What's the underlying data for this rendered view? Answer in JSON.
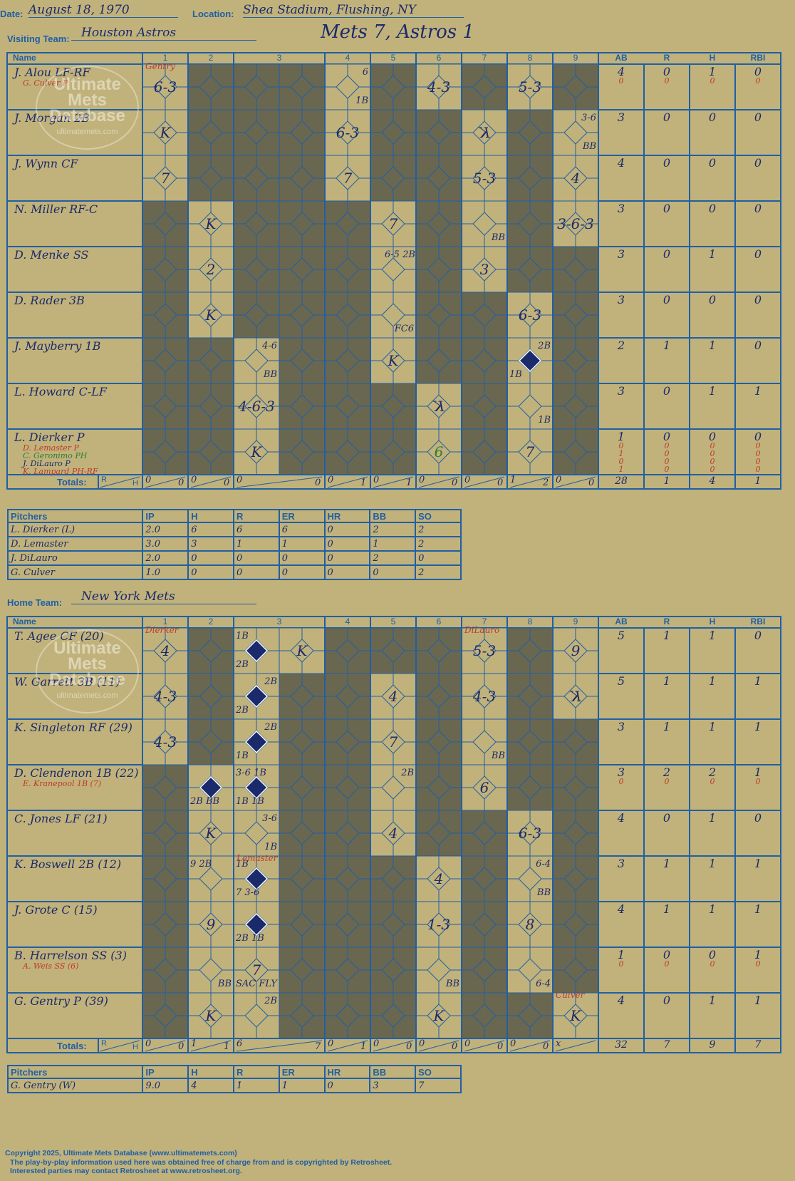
{
  "header": {
    "date_label": "Date:",
    "date": "August 18, 1970",
    "location_label": "Location:",
    "location": "Shea Stadium, Flushing, NY",
    "visiting_label": "Visiting Team:",
    "visiting_team": "Houston Astros",
    "home_label": "Home Team:",
    "home_team": "New York Mets",
    "score_title": "Mets 7, Astros 1"
  },
  "columns": {
    "name": "Name",
    "innings": [
      "1",
      "2",
      "3",
      "4",
      "5",
      "6",
      "7",
      "8",
      "9"
    ],
    "stats": [
      "AB",
      "R",
      "H",
      "RBI"
    ]
  },
  "watermark": {
    "line1": "Ultimate",
    "line2": "Mets",
    "line3": "Database",
    "url": "ultimatemets.com"
  },
  "visitors": {
    "players": [
      {
        "name": "J. Alou LF-RF",
        "subs": [
          {
            "name": "G. Culver P",
            "color": "#c0392b"
          }
        ],
        "stats": [
          "4",
          "0",
          "1",
          "0"
        ],
        "sub_stats": [
          [
            "0",
            "0",
            "0",
            "0"
          ]
        ]
      },
      {
        "name": "J. Morgan 2B",
        "subs": [],
        "stats": [
          "3",
          "0",
          "0",
          "0"
        ],
        "sub_stats": []
      },
      {
        "name": "J. Wynn CF",
        "subs": [],
        "stats": [
          "4",
          "0",
          "0",
          "0"
        ],
        "sub_stats": []
      },
      {
        "name": "N. Miller RF-C",
        "subs": [],
        "stats": [
          "3",
          "0",
          "0",
          "0"
        ],
        "sub_stats": []
      },
      {
        "name": "D. Menke SS",
        "subs": [],
        "stats": [
          "3",
          "0",
          "1",
          "0"
        ],
        "sub_stats": []
      },
      {
        "name": "D. Rader 3B",
        "subs": [],
        "stats": [
          "3",
          "0",
          "0",
          "0"
        ],
        "sub_stats": []
      },
      {
        "name": "J. Mayberry 1B",
        "subs": [],
        "stats": [
          "2",
          "1",
          "1",
          "0"
        ],
        "sub_stats": []
      },
      {
        "name": "L. Howard C-LF",
        "subs": [],
        "stats": [
          "3",
          "0",
          "1",
          "1"
        ],
        "sub_stats": []
      },
      {
        "name": "L. Dierker P",
        "subs": [
          {
            "name": "D. Lemaster P",
            "color": "#c0392b"
          },
          {
            "name": "C. Geronimo PH",
            "color": "#2e7d32"
          },
          {
            "name": "J. DiLauro P",
            "color": "#1b2a6b"
          },
          {
            "name": "K. Lampard PH-RF",
            "color": "#c0392b"
          }
        ],
        "stats": [
          "1",
          "0",
          "0",
          "0"
        ],
        "sub_stats": [
          [
            "0",
            "0",
            "0",
            "0"
          ],
          [
            "1",
            "0",
            "0",
            "0"
          ],
          [
            "0",
            "0",
            "0",
            "0"
          ],
          [
            "1",
            "0",
            "0",
            "0"
          ]
        ]
      }
    ],
    "totals_label": "Totals:",
    "rh_r": "R",
    "rh_h": "H",
    "inning_totals": [
      [
        "0",
        "0"
      ],
      [
        "0",
        "0"
      ],
      [
        "0",
        "0"
      ],
      [
        "0",
        "1"
      ],
      [
        "0",
        "1"
      ],
      [
        "0",
        "0"
      ],
      [
        "0",
        "0"
      ],
      [
        "1",
        "2"
      ],
      [
        "0",
        "0"
      ]
    ],
    "totals": [
      "28",
      "1",
      "4",
      "1"
    ]
  },
  "visitor_pitching": {
    "label": "Pitchers",
    "headers": [
      "IP",
      "H",
      "R",
      "ER",
      "HR",
      "BB",
      "SO"
    ],
    "rows": [
      [
        "L. Dierker (L)",
        "2.0",
        "6",
        "6",
        "6",
        "0",
        "2",
        "2"
      ],
      [
        "D. Lemaster",
        "3.0",
        "3",
        "1",
        "1",
        "0",
        "1",
        "2"
      ],
      [
        "J. DiLauro",
        "2.0",
        "0",
        "0",
        "0",
        "0",
        "2",
        "0"
      ],
      [
        "G. Culver",
        "1.0",
        "0",
        "0",
        "0",
        "0",
        "0",
        "2"
      ]
    ]
  },
  "home": {
    "players": [
      {
        "name": "T. Agee CF (20)",
        "subs": [],
        "stats": [
          "5",
          "1",
          "1",
          "0"
        ],
        "sub_stats": []
      },
      {
        "name": "W. Garrett 3B (11)",
        "subs": [],
        "stats": [
          "5",
          "1",
          "1",
          "1"
        ],
        "sub_stats": []
      },
      {
        "name": "K. Singleton RF (29)",
        "subs": [],
        "stats": [
          "3",
          "1",
          "1",
          "1"
        ],
        "sub_stats": []
      },
      {
        "name": "D. Clendenon 1B (22)",
        "subs": [
          {
            "name": "E. Kranepool 1B (7)",
            "color": "#c0392b"
          }
        ],
        "stats": [
          "3",
          "2",
          "2",
          "1"
        ],
        "sub_stats": [
          [
            "0",
            "0",
            "0",
            "0"
          ]
        ]
      },
      {
        "name": "C. Jones LF (21)",
        "subs": [],
        "stats": [
          "4",
          "0",
          "1",
          "0"
        ],
        "sub_stats": []
      },
      {
        "name": "K. Boswell 2B (12)",
        "subs": [],
        "stats": [
          "3",
          "1",
          "1",
          "1"
        ],
        "sub_stats": []
      },
      {
        "name": "J. Grote C (15)",
        "subs": [],
        "stats": [
          "4",
          "1",
          "1",
          "1"
        ],
        "sub_stats": []
      },
      {
        "name": "B. Harrelson SS (3)",
        "subs": [
          {
            "name": "A. Weis SS (6)",
            "color": "#c0392b"
          }
        ],
        "stats": [
          "1",
          "0",
          "0",
          "1"
        ],
        "sub_stats": [
          [
            "0",
            "0",
            "0",
            "0"
          ]
        ]
      },
      {
        "name": "G. Gentry P (39)",
        "subs": [],
        "stats": [
          "4",
          "0",
          "1",
          "1"
        ],
        "sub_stats": []
      }
    ],
    "totals_label": "Totals:",
    "rh_r": "R",
    "rh_h": "H",
    "inning_totals": [
      [
        "0",
        "0"
      ],
      [
        "1",
        "1"
      ],
      [
        "6",
        "7"
      ],
      [
        "0",
        "1"
      ],
      [
        "0",
        "0"
      ],
      [
        "0",
        "0"
      ],
      [
        "0",
        "0"
      ],
      [
        "0",
        "0"
      ],
      [
        "x",
        ""
      ]
    ],
    "totals": [
      "32",
      "7",
      "9",
      "7"
    ]
  },
  "home_pitching": {
    "label": "Pitchers",
    "headers": [
      "IP",
      "H",
      "R",
      "ER",
      "HR",
      "BB",
      "SO"
    ],
    "rows": [
      [
        "G. Gentry (W)",
        "9.0",
        "4",
        "1",
        "1",
        "0",
        "3",
        "7"
      ]
    ]
  },
  "plays": {
    "visitors": [
      {
        "r": 0,
        "c": 0,
        "t": "6-3"
      },
      {
        "r": 0,
        "c": 4,
        "t": "6",
        "small": true,
        "pos": "tr"
      },
      {
        "r": 0,
        "c": 4,
        "t": "1B",
        "small": true,
        "pos": "br"
      },
      {
        "r": 0,
        "c": 6,
        "t": "4-3"
      },
      {
        "r": 0,
        "c": 8,
        "t": "5-3"
      },
      {
        "r": 1,
        "c": 0,
        "t": "K"
      },
      {
        "r": 1,
        "c": 4,
        "t": "6-3"
      },
      {
        "r": 1,
        "c": 7,
        "t": "K",
        "rev": true
      },
      {
        "r": 1,
        "c": 9,
        "t": "3-6",
        "small": true,
        "pos": "tr"
      },
      {
        "r": 1,
        "c": 9,
        "t": "BB",
        "small": true,
        "pos": "br"
      },
      {
        "r": 2,
        "c": 0,
        "t": "7"
      },
      {
        "r": 2,
        "c": 4,
        "t": "7"
      },
      {
        "r": 2,
        "c": 7,
        "t": "5-3"
      },
      {
        "r": 2,
        "c": 9,
        "t": "4"
      },
      {
        "r": 3,
        "c": 1,
        "t": "K"
      },
      {
        "r": 3,
        "c": 5,
        "t": "7"
      },
      {
        "r": 3,
        "c": 7,
        "t": "BB",
        "small": true,
        "pos": "br"
      },
      {
        "r": 3,
        "c": 9,
        "t": "3-6-3"
      },
      {
        "r": 4,
        "c": 1,
        "t": "2"
      },
      {
        "r": 4,
        "c": 5,
        "t": "6-5 2B",
        "small": true,
        "pos": "tr"
      },
      {
        "r": 4,
        "c": 7,
        "t": "3"
      },
      {
        "r": 5,
        "c": 1,
        "t": "K"
      },
      {
        "r": 5,
        "c": 5,
        "t": "FC6",
        "small": true,
        "pos": "br"
      },
      {
        "r": 5,
        "c": 8,
        "t": "6-3"
      },
      {
        "r": 6,
        "c": 2,
        "t": "4-6",
        "small": true,
        "pos": "tr"
      },
      {
        "r": 6,
        "c": 2,
        "t": "BB",
        "small": true,
        "pos": "br"
      },
      {
        "r": 6,
        "c": 5,
        "t": "K"
      },
      {
        "r": 6,
        "c": 8,
        "t": "2B",
        "small": true,
        "pos": "tr"
      },
      {
        "r": 6,
        "c": 8,
        "t": "1B",
        "small": true,
        "pos": "bl"
      },
      {
        "r": 7,
        "c": 2,
        "t": "4-6-3"
      },
      {
        "r": 7,
        "c": 6,
        "t": "K",
        "rev": true
      },
      {
        "r": 7,
        "c": 8,
        "t": "1B",
        "small": true,
        "pos": "br"
      },
      {
        "r": 8,
        "c": 2,
        "t": "K"
      },
      {
        "r": 8,
        "c": 6,
        "t": "6",
        "color": "#2e7d32"
      },
      {
        "r": 8,
        "c": 8,
        "t": "7"
      }
    ],
    "home": [
      {
        "r": 0,
        "c": 0,
        "t": "4"
      },
      {
        "r": 0,
        "c": 2,
        "t": "1B",
        "small": true,
        "pos": "tl"
      },
      {
        "r": 0,
        "c": 2,
        "t": "2B",
        "small": true,
        "pos": "bl"
      },
      {
        "r": 0,
        "c": 3,
        "t": "K"
      },
      {
        "r": 0,
        "c": 7,
        "t": "5-3"
      },
      {
        "r": 0,
        "c": 9,
        "t": "9"
      },
      {
        "r": 1,
        "c": 0,
        "t": "4-3"
      },
      {
        "r": 1,
        "c": 2,
        "t": "2B",
        "small": true,
        "pos": "tr"
      },
      {
        "r": 1,
        "c": 2,
        "t": "2B",
        "small": true,
        "pos": "bl"
      },
      {
        "r": 1,
        "c": 5,
        "t": "4"
      },
      {
        "r": 1,
        "c": 7,
        "t": "4-3"
      },
      {
        "r": 1,
        "c": 9,
        "t": "K",
        "rev": true
      },
      {
        "r": 2,
        "c": 0,
        "t": "4-3"
      },
      {
        "r": 2,
        "c": 2,
        "t": "2B",
        "small": true,
        "pos": "tr"
      },
      {
        "r": 2,
        "c": 2,
        "t": "1B",
        "small": true,
        "pos": "bl"
      },
      {
        "r": 2,
        "c": 5,
        "t": "7"
      },
      {
        "r": 2,
        "c": 7,
        "t": "BB",
        "small": true,
        "pos": "br"
      },
      {
        "r": 3,
        "c": 1,
        "t": "2B BB",
        "small": true,
        "pos": "bl"
      },
      {
        "r": 3,
        "c": 2,
        "t": "3-6 1B",
        "small": true,
        "pos": "tl"
      },
      {
        "r": 3,
        "c": 2,
        "t": "1B 1B",
        "small": true,
        "pos": "bl"
      },
      {
        "r": 3,
        "c": 5,
        "t": "2B",
        "small": true,
        "pos": "tr"
      },
      {
        "r": 3,
        "c": 7,
        "t": "6"
      },
      {
        "r": 4,
        "c": 1,
        "t": "K"
      },
      {
        "r": 4,
        "c": 2,
        "t": "3-6",
        "small": true,
        "pos": "tr"
      },
      {
        "r": 4,
        "c": 2,
        "t": "1B",
        "small": true,
        "pos": "br"
      },
      {
        "r": 4,
        "c": 5,
        "t": "4"
      },
      {
        "r": 4,
        "c": 8,
        "t": "6-3"
      },
      {
        "r": 5,
        "c": 1,
        "t": "9      2B",
        "small": true,
        "pos": "tl"
      },
      {
        "r": 5,
        "c": 2,
        "t": "1B",
        "small": true,
        "pos": "tl"
      },
      {
        "r": 5,
        "c": 2,
        "t": "7     3-6",
        "small": true,
        "pos": "bl"
      },
      {
        "r": 5,
        "c": 6,
        "t": "4"
      },
      {
        "r": 5,
        "c": 8,
        "t": "6-4",
        "small": true,
        "pos": "tr"
      },
      {
        "r": 5,
        "c": 8,
        "t": "BB",
        "small": true,
        "pos": "br"
      },
      {
        "r": 6,
        "c": 1,
        "t": "9"
      },
      {
        "r": 6,
        "c": 2,
        "t": "2B 1B",
        "small": true,
        "pos": "bl"
      },
      {
        "r": 6,
        "c": 6,
        "t": "1-3"
      },
      {
        "r": 6,
        "c": 8,
        "t": "8"
      },
      {
        "r": 7,
        "c": 1,
        "t": "BB",
        "small": true,
        "pos": "br"
      },
      {
        "r": 7,
        "c": 2,
        "t": "7"
      },
      {
        "r": 7,
        "c": 2,
        "t": "SAC FLY",
        "small": true,
        "pos": "bl"
      },
      {
        "r": 7,
        "c": 6,
        "t": "BB",
        "small": true,
        "pos": "br"
      },
      {
        "r": 7,
        "c": 8,
        "t": "6-4",
        "small": true,
        "pos": "br"
      },
      {
        "r": 8,
        "c": 1,
        "t": "K"
      },
      {
        "r": 8,
        "c": 2,
        "t": "2B",
        "small": true,
        "pos": "tr"
      },
      {
        "r": 8,
        "c": 6,
        "t": "K"
      },
      {
        "r": 8,
        "c": 9,
        "t": "K"
      }
    ]
  },
  "runs_scored": {
    "visitors": [
      {
        "r": 6,
        "c": 8
      }
    ],
    "home": [
      {
        "r": 0,
        "c": 2
      },
      {
        "r": 1,
        "c": 2
      },
      {
        "r": 2,
        "c": 2
      },
      {
        "r": 3,
        "c": 1
      },
      {
        "r": 3,
        "c": 2
      },
      {
        "r": 5,
        "c": 2
      },
      {
        "r": 6,
        "c": 2
      }
    ]
  },
  "pitcher_changes": {
    "visitors": [
      {
        "r": 0,
        "c": 0,
        "t": "Gentry"
      }
    ],
    "home": [
      {
        "r": 0,
        "c": 0,
        "t": "Dierker"
      },
      {
        "r": 0,
        "c": 7,
        "t": "DiLauro"
      },
      {
        "r": 5,
        "c": 2,
        "t": "Lemaster"
      },
      {
        "r": 8,
        "c": 9,
        "t": "Culver"
      }
    ]
  },
  "footer": {
    "line1": "Copyright 2025, Ultimate Mets Database (www.ultimatemets.com)",
    "line2": "The play-by-play information used here was obtained free of charge from and is copyrighted by Retrosheet.",
    "line3": "Interested parties may contact Retrosheet at www.retrosheet.org."
  },
  "colors": {
    "paper": "#c1b27b",
    "grid": "#1f5fa5",
    "inactive": "#6a6750",
    "ink": "#1b2a6b",
    "run": "#1b2a6b",
    "sub_red": "#c0392b",
    "sub_green": "#2e7d32"
  }
}
